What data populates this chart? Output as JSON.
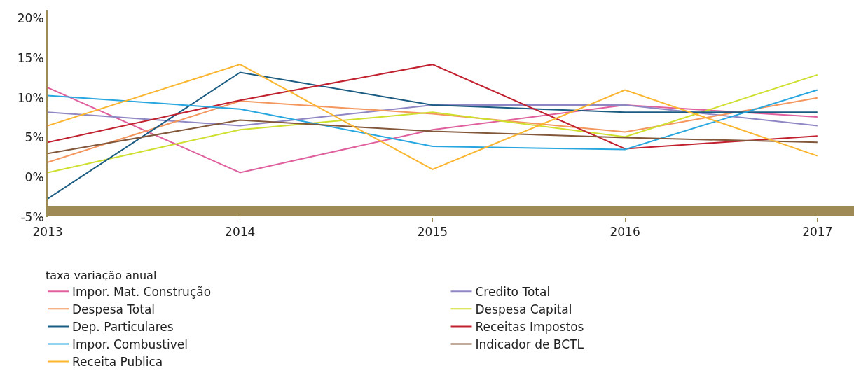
{
  "chart_data": {
    "type": "line",
    "legend_title": "taxa variação anual",
    "legend": "bottom",
    "grid": false,
    "x": [
      2013,
      2014,
      2015,
      2016,
      2017
    ],
    "xlim": [
      2013,
      2017.19
    ],
    "xticks": [
      2013,
      2014,
      2015,
      2016,
      2017
    ],
    "ylim": [
      -5,
      21
    ],
    "yticks": [
      {
        "value": -5,
        "label": "-5%"
      },
      {
        "value": 0,
        "label": "0%"
      },
      {
        "value": 5,
        "label": "5%"
      },
      {
        "value": 10,
        "label": "10%"
      },
      {
        "value": 15,
        "label": "15%"
      },
      {
        "value": 20,
        "label": "20%"
      }
    ],
    "bands": [
      {
        "axis": "y",
        "from": -4.9,
        "to": -3.6,
        "color": "#9e8a55"
      }
    ],
    "series": [
      {
        "name": "Impor. Mat. Construção",
        "color": "#e0609e",
        "values": [
          11.3,
          0.6,
          6.0,
          9.1,
          7.6
        ]
      },
      {
        "name": "Credito Total",
        "color": "#8f87c4",
        "values": [
          8.2,
          6.5,
          9.1,
          9.1,
          6.5
        ]
      },
      {
        "name": "Despesa Total",
        "color": "#f4975e",
        "values": [
          1.9,
          9.6,
          8.0,
          5.7,
          10.0
        ]
      },
      {
        "name": "Despesa Capital",
        "color": "#cfdf2e",
        "values": [
          0.6,
          6.0,
          8.2,
          5.1,
          12.9
        ]
      },
      {
        "name": "Dep. Particulares",
        "color": "#1b5c82",
        "values": [
          -2.7,
          13.2,
          9.1,
          8.2,
          8.2
        ]
      },
      {
        "name": "Receitas Impostos",
        "color": "#c1202f",
        "values": [
          4.4,
          9.7,
          14.2,
          3.6,
          5.2
        ]
      },
      {
        "name": "Impor. Combustivel",
        "color": "#27a6df",
        "values": [
          10.3,
          8.6,
          3.9,
          3.5,
          11.0
        ]
      },
      {
        "name": "Indicador de BCTL",
        "color": "#82573a",
        "values": [
          3.0,
          7.2,
          5.8,
          5.0,
          4.4
        ]
      },
      {
        "name": "Receita Publica",
        "color": "#fbb52f",
        "values": [
          6.5,
          14.2,
          1.0,
          11.0,
          2.7
        ]
      }
    ]
  }
}
